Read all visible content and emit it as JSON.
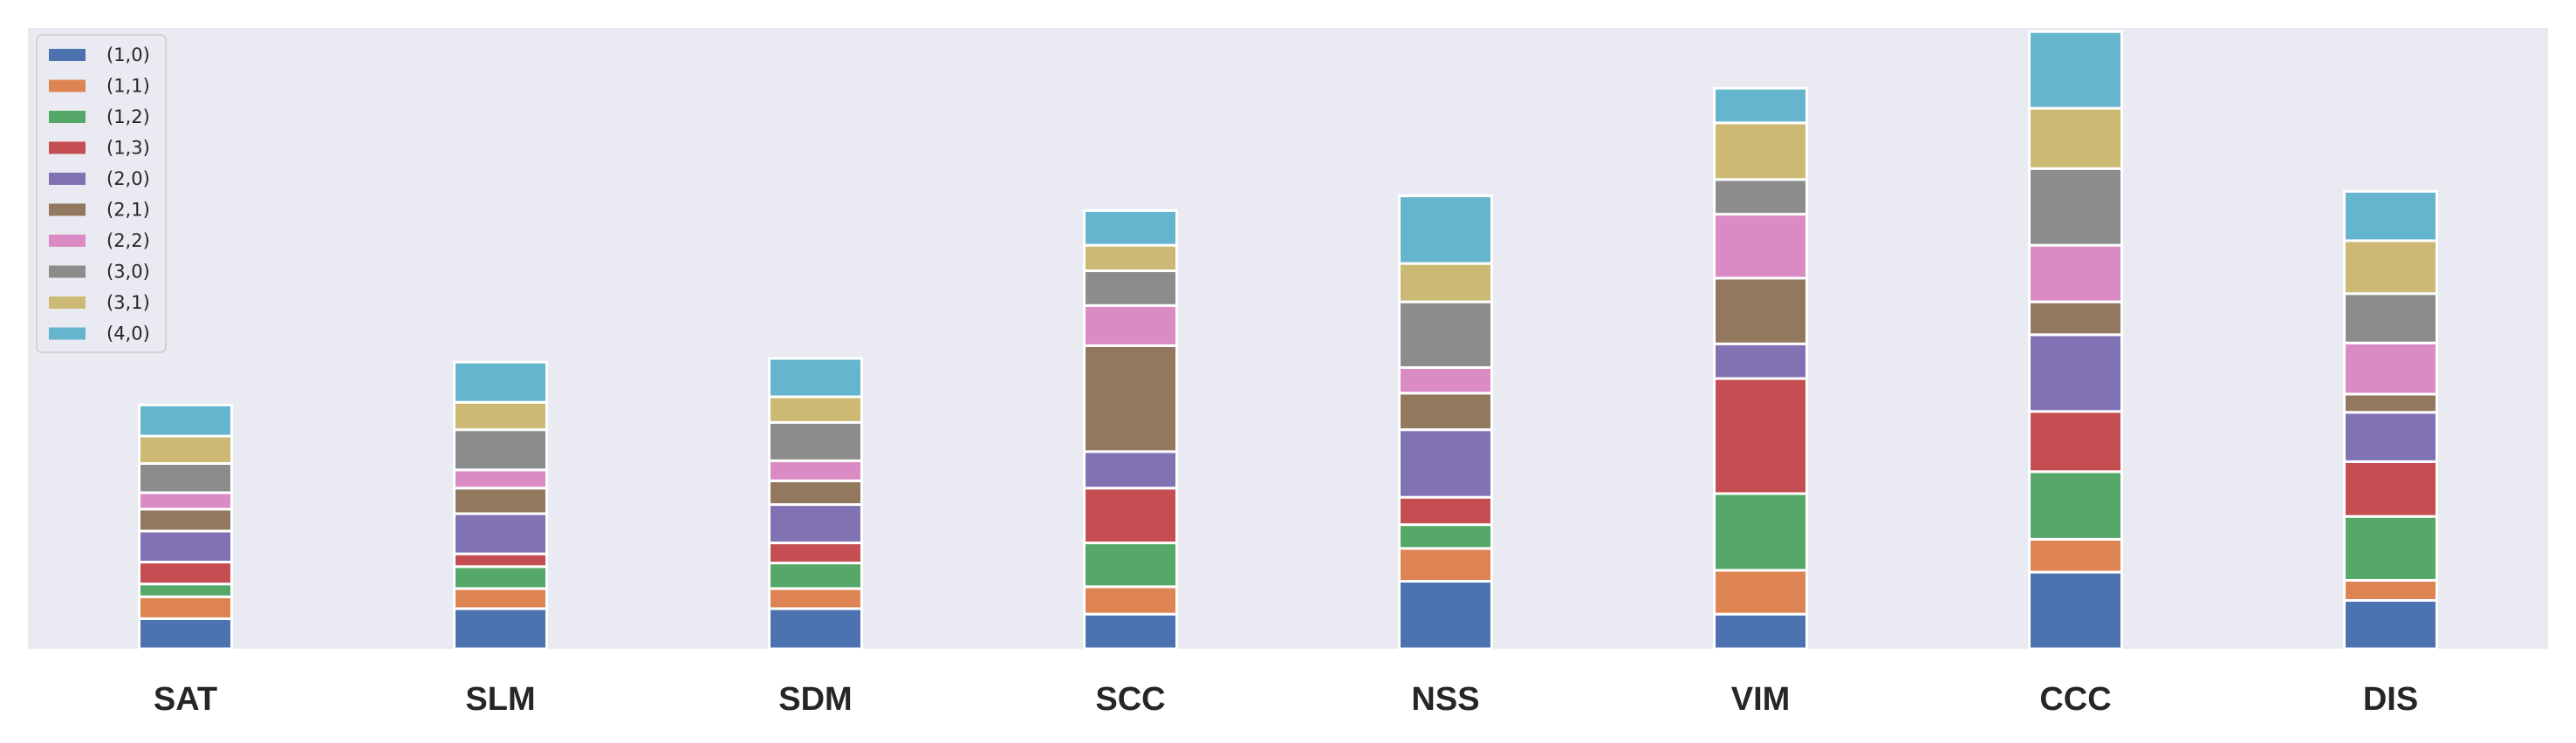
{
  "chart_data": {
    "type": "bar",
    "stacked": true,
    "categories": [
      "SAT",
      "SLM",
      "SDM",
      "SCC",
      "NSS",
      "VIM",
      "CCC",
      "DIS"
    ],
    "ylim": [
      0,
      680
    ],
    "grid": false,
    "legend_position": "top-left",
    "series": [
      {
        "name": "(1,0)",
        "color": "#4c72b0",
        "values": [
          33,
          44,
          44,
          38,
          74,
          38,
          84,
          53
        ]
      },
      {
        "name": "(1,1)",
        "color": "#dd8452",
        "values": [
          24,
          22,
          22,
          30,
          36,
          48,
          36,
          22
        ]
      },
      {
        "name": "(1,2)",
        "color": "#55a868",
        "values": [
          14,
          24,
          28,
          48,
          26,
          84,
          74,
          70
        ]
      },
      {
        "name": "(1,3)",
        "color": "#c44e52",
        "values": [
          24,
          14,
          22,
          60,
          30,
          126,
          66,
          60
        ]
      },
      {
        "name": "(2,0)",
        "color": "#8172b3",
        "values": [
          34,
          44,
          42,
          40,
          74,
          38,
          84,
          54
        ]
      },
      {
        "name": "(2,1)",
        "color": "#937860",
        "values": [
          24,
          28,
          26,
          116,
          40,
          72,
          36,
          20
        ]
      },
      {
        "name": "(2,2)",
        "color": "#da8bc3",
        "values": [
          18,
          20,
          22,
          44,
          28,
          70,
          62,
          56
        ]
      },
      {
        "name": "(3,0)",
        "color": "#8c8c8c",
        "values": [
          32,
          44,
          42,
          38,
          72,
          38,
          84,
          54
        ]
      },
      {
        "name": "(3,1)",
        "color": "#ccb974",
        "values": [
          30,
          30,
          28,
          28,
          42,
          62,
          66,
          58
        ]
      },
      {
        "name": "(4,0)",
        "color": "#64b5cd",
        "values": [
          34,
          44,
          42,
          38,
          74,
          38,
          84,
          54
        ]
      }
    ]
  }
}
